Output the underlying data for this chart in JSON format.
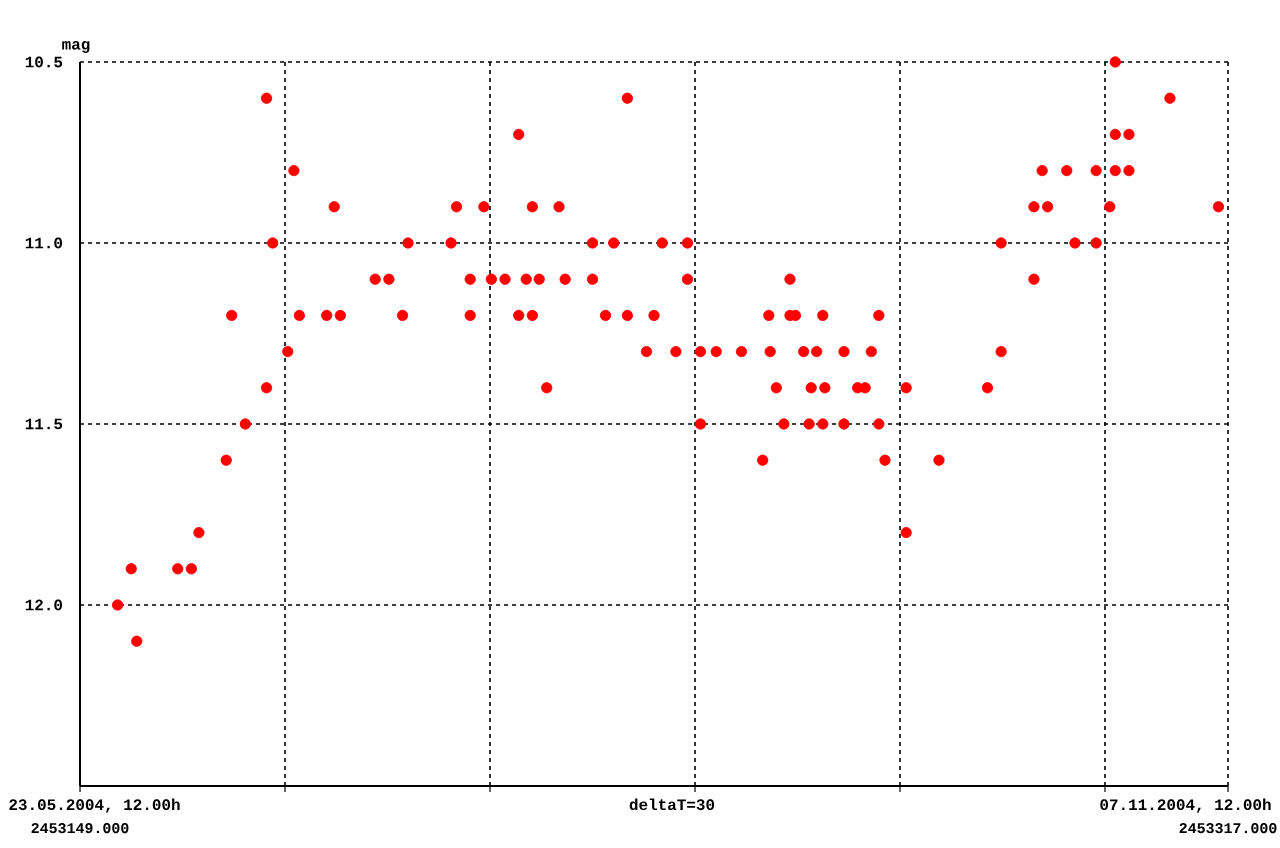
{
  "chart_data": {
    "type": "scatter",
    "ylabel": "mag",
    "annotations": [
      "deltaT=30",
      "23.05.2004, 12.00h",
      "07.11.2004, 12.00h"
    ],
    "xlim": [
      2453149,
      2453317
    ],
    "xticks": [
      {
        "value": 2453149,
        "label": "2453149.000"
      },
      {
        "value": 2453179,
        "label": null
      },
      {
        "value": 2453209,
        "label": null
      },
      {
        "value": 2453239,
        "label": null
      },
      {
        "value": 2453269,
        "label": null
      },
      {
        "value": 2453299,
        "label": null
      },
      {
        "value": 2453317,
        "label": "2453317.000"
      }
    ],
    "ylim": [
      12.5,
      10.5
    ],
    "yticks": [
      {
        "value": 10.5,
        "label": "10.5"
      },
      {
        "value": 11.0,
        "label": "11.0"
      },
      {
        "value": 11.5,
        "label": "11.5"
      },
      {
        "value": 12.0,
        "label": "12.0"
      }
    ],
    "grid": true,
    "marker": "circle",
    "series": [
      {
        "color": "#ff0000",
        "x": [
          2453154.5,
          2453156.5,
          2453157.3,
          2453163.3,
          2453165.3,
          2453166.4,
          2453170.4,
          2453171.2,
          2453173.2,
          2453176.3,
          2453176.3,
          2453177.2,
          2453179.4,
          2453180.3,
          2453181.1,
          2453185.1,
          2453186.2,
          2453187.1,
          2453192.2,
          2453194.2,
          2453196.2,
          2453197.0,
          2453203.3,
          2453204.1,
          2453206.1,
          2453206.1,
          2453208.1,
          2453209.2,
          2453211.2,
          2453213.2,
          2453213.2,
          2453214.3,
          2453215.2,
          2453215.2,
          2453216.2,
          2453217.3,
          2453219.1,
          2453220.0,
          2453224.0,
          2453224.0,
          2453225.9,
          2453227.1,
          2453229.1,
          2453229.1,
          2453231.9,
          2453233.0,
          2453234.2,
          2453236.2,
          2453237.9,
          2453237.9,
          2453239.8,
          2453239.8,
          2453242.1,
          2453245.8,
          2453248.9,
          2453249.8,
          2453250.0,
          2453250.9,
          2453252.0,
          2453252.9,
          2453252.9,
          2453253.7,
          2453254.9,
          2453255.7,
          2453256.0,
          2453256.8,
          2453257.7,
          2453257.7,
          2453258.0,
          2453260.8,
          2453260.8,
          2453262.8,
          2453263.9,
          2453264.8,
          2453265.9,
          2453265.9,
          2453266.8,
          2453269.9,
          2453269.9,
          2453274.7,
          2453281.8,
          2453283.8,
          2453283.8,
          2453288.6,
          2453288.6,
          2453289.8,
          2453290.6,
          2453293.4,
          2453294.6,
          2453297.7,
          2453297.7,
          2453299.7,
          2453300.5,
          2453300.5,
          2453300.5,
          2453302.5,
          2453302.5,
          2453308.5,
          2453315.6
        ],
        "values": [
          12.0,
          11.9,
          12.1,
          11.9,
          11.9,
          11.8,
          11.6,
          11.2,
          11.5,
          10.6,
          11.4,
          11.0,
          11.3,
          10.8,
          11.2,
          11.2,
          10.9,
          11.2,
          11.1,
          11.1,
          11.2,
          11.0,
          11.0,
          10.9,
          11.1,
          11.2,
          10.9,
          11.1,
          11.1,
          10.7,
          11.2,
          11.1,
          10.9,
          11.2,
          11.1,
          11.4,
          10.9,
          11.1,
          11.0,
          11.1,
          11.2,
          11.0,
          10.6,
          11.2,
          11.3,
          11.2,
          11.0,
          11.3,
          11.0,
          11.1,
          11.3,
          11.5,
          11.3,
          11.3,
          11.6,
          11.2,
          11.3,
          11.4,
          11.5,
          11.1,
          11.2,
          11.2,
          11.3,
          11.5,
          11.4,
          11.3,
          11.2,
          11.5,
          11.4,
          11.3,
          11.5,
          11.4,
          11.4,
          11.3,
          11.2,
          11.5,
          11.6,
          11.4,
          11.8,
          11.6,
          11.4,
          11.3,
          11.0,
          11.1,
          10.9,
          10.8,
          10.9,
          10.8,
          11.0,
          11.0,
          10.8,
          10.9,
          10.5,
          10.7,
          10.8,
          10.7,
          10.8,
          10.6,
          10.9
        ]
      }
    ]
  }
}
